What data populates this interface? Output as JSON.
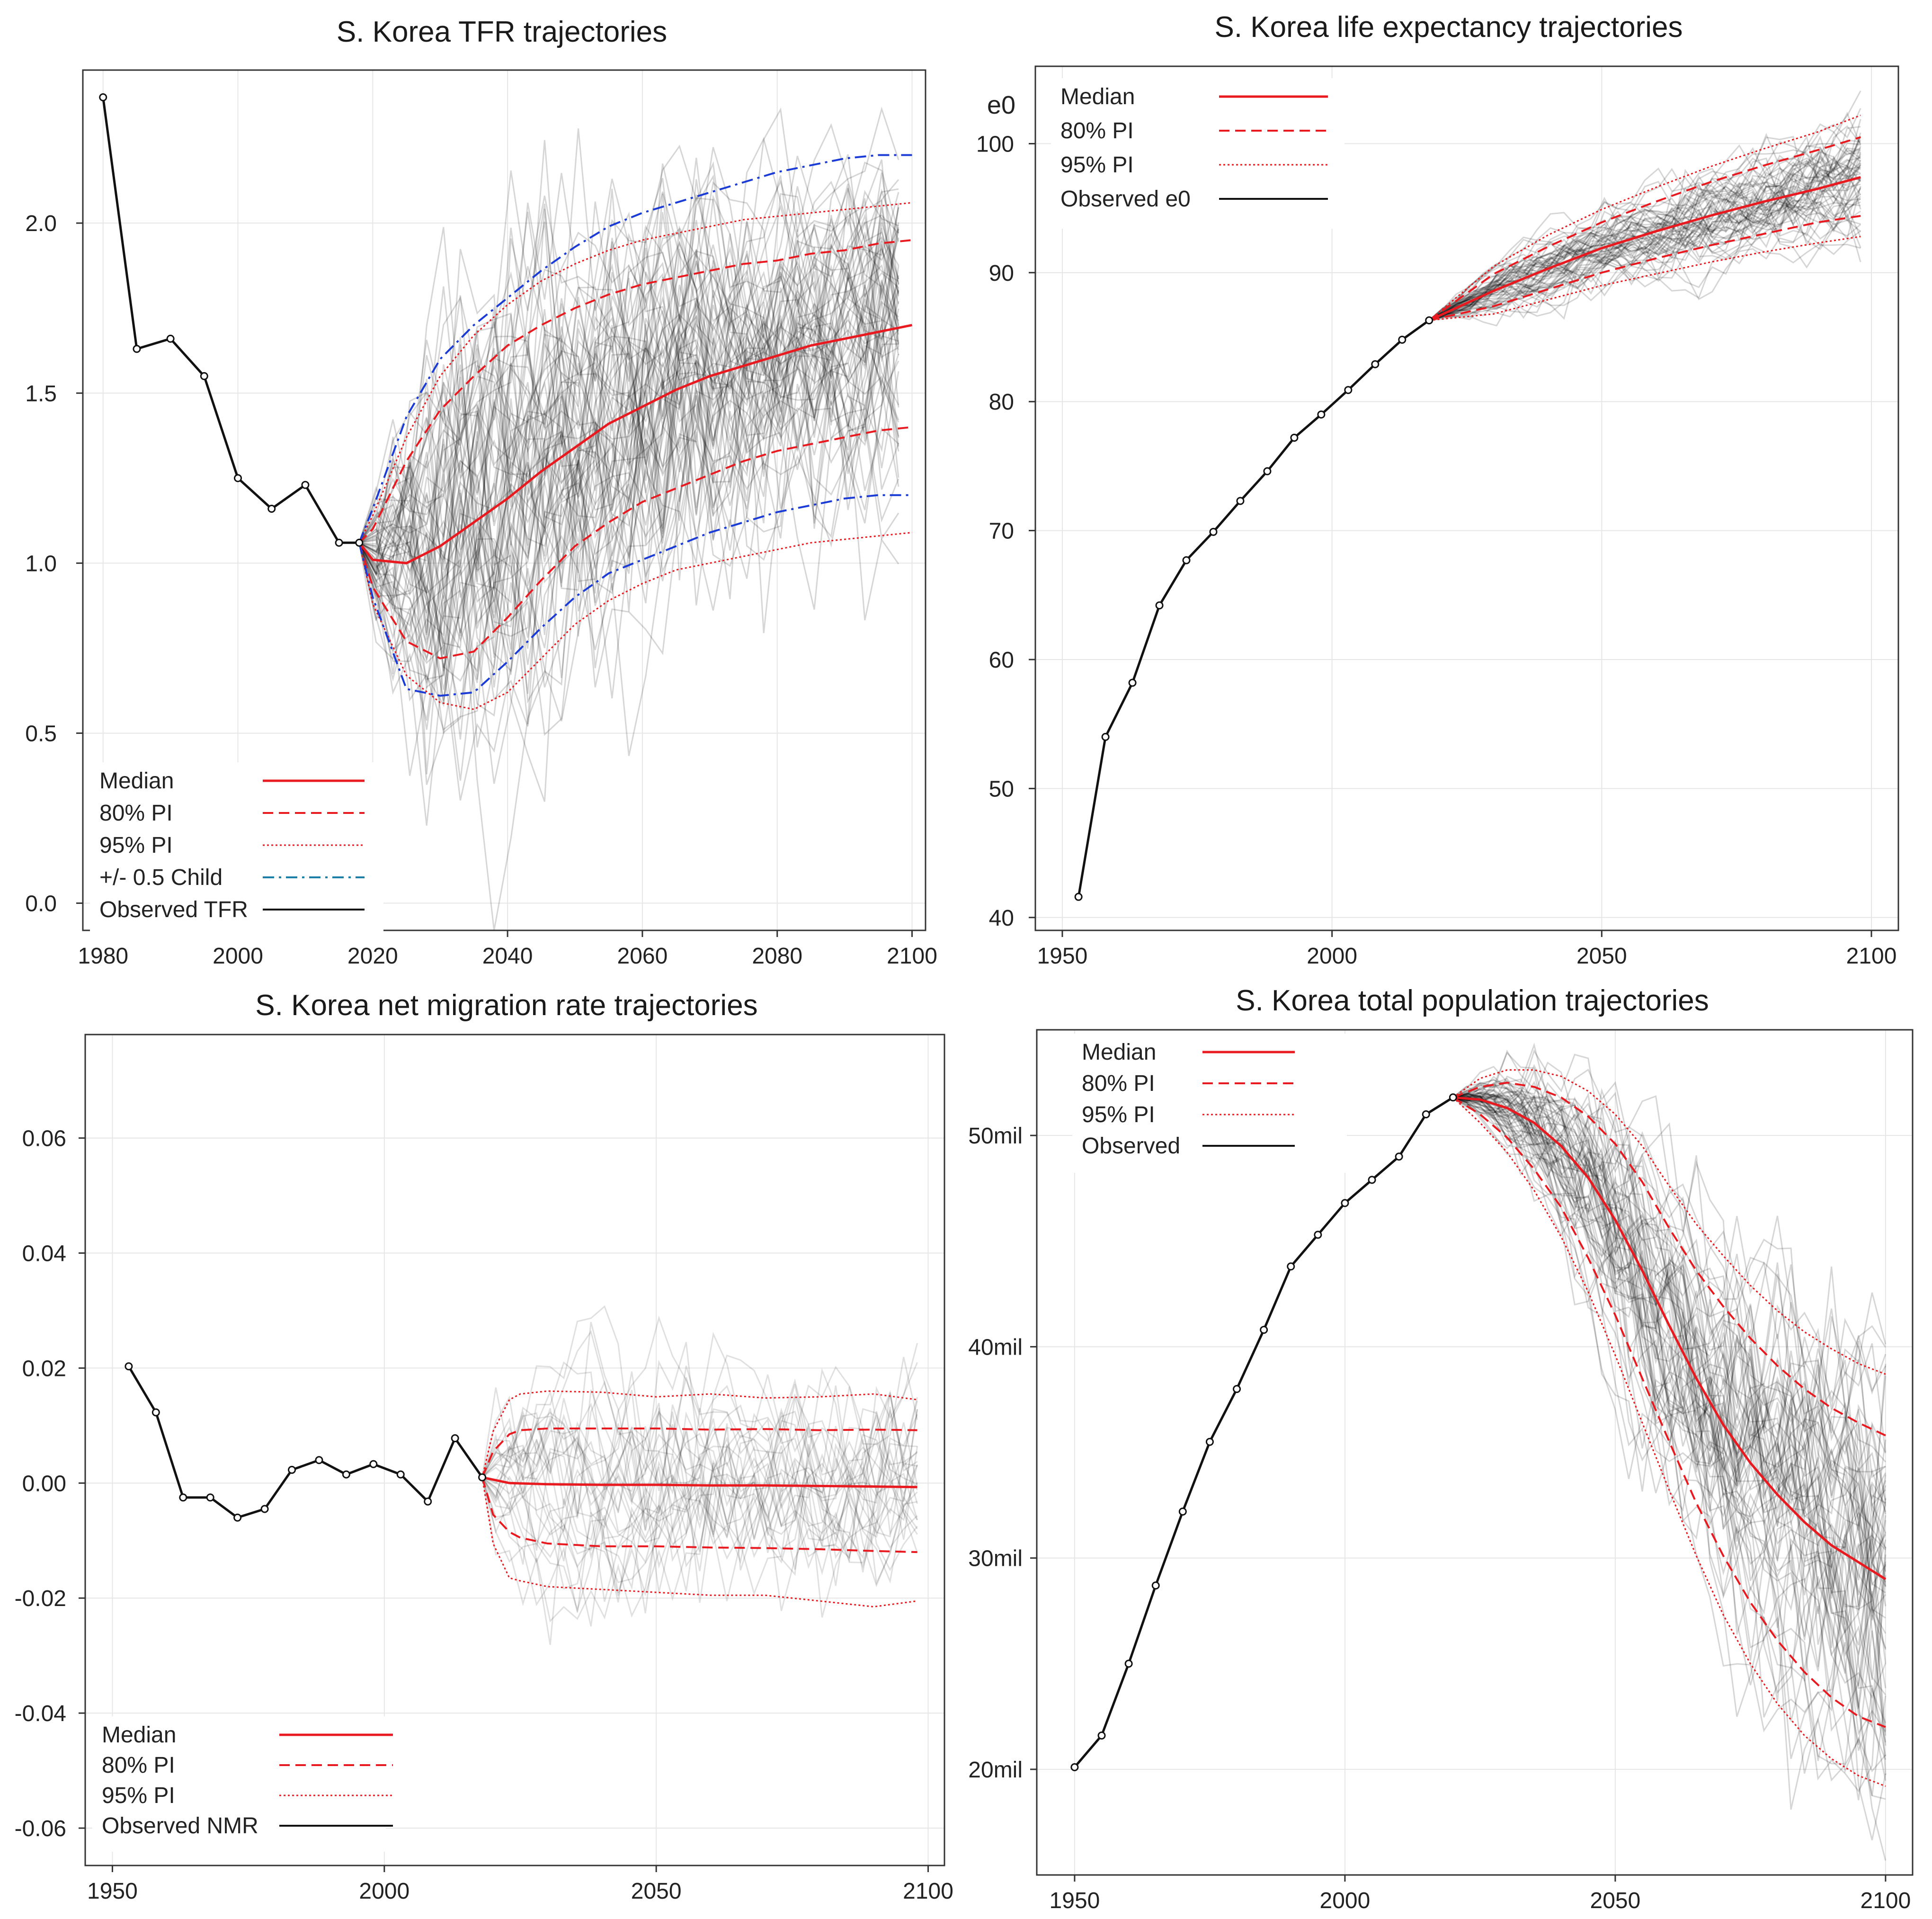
{
  "chart_data": [
    {
      "id": "tfr",
      "type": "line",
      "title": "S. Korea TFR trajectories",
      "xlabel": "",
      "ylabel": "",
      "xlim": [
        1977,
        2102
      ],
      "ylim": [
        -0.08,
        2.45
      ],
      "xticks": [
        1980,
        2000,
        2020,
        2040,
        2060,
        2080,
        2100
      ],
      "yticks": [
        0.0,
        0.5,
        1.0,
        1.5,
        2.0
      ],
      "ytick_labels": [
        "0.0",
        "0.5",
        "1.0",
        "1.5",
        "2.0"
      ],
      "legend_position": "bottom-left",
      "legend": [
        "Median",
        "80% PI",
        "95% PI",
        "+/- 0.5 Child",
        "Observed TFR"
      ],
      "observed": {
        "x": [
          1980,
          1985,
          1990,
          1995,
          2000,
          2005,
          2010,
          2015,
          2018
        ],
        "y": [
          2.37,
          1.63,
          1.66,
          1.55,
          1.25,
          1.16,
          1.23,
          1.06,
          1.06
        ]
      },
      "median": {
        "x": [
          2018,
          2020,
          2025,
          2030,
          2035,
          2040,
          2045,
          2050,
          2055,
          2060,
          2065,
          2070,
          2075,
          2080,
          2085,
          2090,
          2095,
          2100
        ],
        "y": [
          1.06,
          1.01,
          1.0,
          1.05,
          1.12,
          1.19,
          1.27,
          1.34,
          1.41,
          1.46,
          1.51,
          1.55,
          1.58,
          1.61,
          1.64,
          1.66,
          1.68,
          1.7
        ]
      },
      "pi80_upper": {
        "x": [
          2018,
          2020,
          2025,
          2030,
          2035,
          2040,
          2045,
          2050,
          2055,
          2060,
          2065,
          2070,
          2075,
          2080,
          2085,
          2090,
          2095,
          2100
        ],
        "y": [
          1.06,
          1.1,
          1.3,
          1.45,
          1.55,
          1.64,
          1.7,
          1.75,
          1.79,
          1.82,
          1.84,
          1.86,
          1.88,
          1.89,
          1.91,
          1.92,
          1.94,
          1.95
        ]
      },
      "pi80_lower": {
        "x": [
          2018,
          2020,
          2025,
          2030,
          2035,
          2040,
          2045,
          2050,
          2055,
          2060,
          2065,
          2070,
          2075,
          2080,
          2085,
          2090,
          2095,
          2100
        ],
        "y": [
          1.06,
          0.93,
          0.77,
          0.72,
          0.74,
          0.84,
          0.95,
          1.05,
          1.12,
          1.18,
          1.22,
          1.26,
          1.3,
          1.33,
          1.35,
          1.37,
          1.39,
          1.4
        ]
      },
      "pi95_upper": {
        "x": [
          2018,
          2020,
          2025,
          2030,
          2035,
          2040,
          2045,
          2050,
          2055,
          2060,
          2065,
          2070,
          2075,
          2080,
          2085,
          2090,
          2095,
          2100
        ],
        "y": [
          1.06,
          1.14,
          1.37,
          1.55,
          1.67,
          1.76,
          1.83,
          1.88,
          1.92,
          1.95,
          1.97,
          1.99,
          2.01,
          2.02,
          2.03,
          2.04,
          2.05,
          2.06
        ]
      },
      "pi95_lower": {
        "x": [
          2018,
          2020,
          2025,
          2030,
          2035,
          2040,
          2045,
          2050,
          2055,
          2060,
          2065,
          2070,
          2075,
          2080,
          2085,
          2090,
          2095,
          2100
        ],
        "y": [
          1.06,
          0.88,
          0.67,
          0.59,
          0.57,
          0.62,
          0.72,
          0.82,
          0.89,
          0.94,
          0.98,
          1.0,
          1.02,
          1.04,
          1.06,
          1.07,
          1.08,
          1.09
        ]
      },
      "half_child_upper": {
        "x": [
          2018,
          2020,
          2025,
          2030,
          2035,
          2040,
          2045,
          2050,
          2055,
          2060,
          2065,
          2070,
          2075,
          2080,
          2085,
          2090,
          2095,
          2100
        ],
        "y": [
          1.06,
          1.16,
          1.43,
          1.6,
          1.7,
          1.78,
          1.86,
          1.93,
          1.99,
          2.03,
          2.06,
          2.09,
          2.12,
          2.15,
          2.17,
          2.19,
          2.2,
          2.2
        ]
      },
      "half_child_lower": {
        "x": [
          2018,
          2020,
          2025,
          2030,
          2035,
          2040,
          2045,
          2050,
          2055,
          2060,
          2065,
          2070,
          2075,
          2080,
          2085,
          2090,
          2095,
          2100
        ],
        "y": [
          1.06,
          0.9,
          0.63,
          0.61,
          0.62,
          0.71,
          0.81,
          0.9,
          0.97,
          1.01,
          1.05,
          1.09,
          1.12,
          1.15,
          1.17,
          1.19,
          1.2,
          1.2
        ]
      },
      "trajectories": {
        "count": 70,
        "start_x": 2018,
        "end_x": 2100,
        "step": 2.5
      }
    },
    {
      "id": "e0",
      "type": "line",
      "title": "S. Korea life expectancy trajectories",
      "xlabel": "",
      "ylabel": "",
      "xlim": [
        1945,
        2105
      ],
      "ylim": [
        39,
        106
      ],
      "xticks": [
        1950,
        2000,
        2050,
        2100
      ],
      "yticks": [
        40,
        50,
        60,
        70,
        80,
        90,
        100
      ],
      "ytick_labels": [
        "40",
        "50",
        "60",
        "70",
        "80",
        "90",
        "100"
      ],
      "y_axis_label": "e0",
      "legend_position": "top-left",
      "legend": [
        "Median",
        "80% PI",
        "95% PI",
        "Observed e0"
      ],
      "observed": {
        "x": [
          1953,
          1958,
          1963,
          1968,
          1973,
          1978,
          1983,
          1988,
          1993,
          1998,
          2003,
          2008,
          2013,
          2018
        ],
        "y": [
          41.6,
          54.0,
          58.2,
          64.2,
          67.7,
          69.9,
          72.3,
          74.6,
          77.2,
          79.0,
          80.9,
          82.9,
          84.8,
          86.3
        ]
      },
      "median": {
        "x": [
          2018,
          2030,
          2040,
          2050,
          2060,
          2070,
          2080,
          2090,
          2098
        ],
        "y": [
          86.3,
          88.6,
          90.3,
          91.9,
          93.2,
          94.4,
          95.5,
          96.5,
          97.4
        ]
      },
      "pi80_upper": {
        "x": [
          2018,
          2030,
          2040,
          2050,
          2060,
          2070,
          2080,
          2090,
          2098
        ],
        "y": [
          86.3,
          89.9,
          92.0,
          93.9,
          95.5,
          97.0,
          98.3,
          99.5,
          100.5
        ]
      },
      "pi80_lower": {
        "x": [
          2018,
          2030,
          2040,
          2050,
          2060,
          2070,
          2080,
          2090,
          2098
        ],
        "y": [
          86.3,
          87.4,
          88.7,
          90.0,
          91.1,
          92.1,
          93.0,
          93.9,
          94.4
        ]
      },
      "pi95_upper": {
        "x": [
          2018,
          2030,
          2040,
          2050,
          2060,
          2070,
          2080,
          2090,
          2098
        ],
        "y": [
          86.3,
          90.5,
          92.9,
          94.9,
          96.6,
          98.2,
          99.6,
          100.9,
          102.2
        ]
      },
      "pi95_lower": {
        "x": [
          2018,
          2030,
          2040,
          2050,
          2060,
          2070,
          2080,
          2090,
          2098
        ],
        "y": [
          86.3,
          86.8,
          87.9,
          89.0,
          89.9,
          90.8,
          91.6,
          92.3,
          92.8
        ]
      },
      "trajectories": {
        "count": 60,
        "start_x": 2018,
        "end_x": 2098,
        "step": 2.5
      }
    },
    {
      "id": "nmr",
      "type": "line",
      "title": "S. Korea net migration rate trajectories",
      "xlabel": "",
      "ylabel": "",
      "xlim": [
        1945,
        2103
      ],
      "ylim": [
        -0.0665,
        0.078
      ],
      "xticks": [
        1950,
        2000,
        2050,
        2100
      ],
      "yticks": [
        -0.06,
        -0.04,
        -0.02,
        0.0,
        0.02,
        0.04,
        0.06
      ],
      "ytick_labels": [
        "-0.06",
        "-0.04",
        "-0.02",
        "0.00",
        "0.02",
        "0.04",
        "0.06"
      ],
      "legend_position": "bottom-left",
      "legend": [
        "Median",
        "80% PI",
        "95% PI",
        "Observed NMR"
      ],
      "observed": {
        "x": [
          1953,
          1958,
          1963,
          1968,
          1973,
          1978,
          1983,
          1988,
          1993,
          1998,
          2003,
          2008,
          2013,
          2018
        ],
        "y": [
          0.0203,
          0.0123,
          -0.0025,
          -0.0025,
          -0.006,
          -0.0045,
          0.0023,
          0.004,
          0.0015,
          0.0033,
          0.0015,
          -0.0032,
          0.0078,
          0.001
        ]
      },
      "median": {
        "x": [
          2018,
          2023,
          2030,
          2040,
          2050,
          2060,
          2070,
          2080,
          2090,
          2098
        ],
        "y": [
          0.001,
          0.0,
          -0.0002,
          -0.0003,
          -0.0003,
          -0.0004,
          -0.0004,
          -0.0005,
          -0.0006,
          -0.0007
        ]
      },
      "pi80_upper": {
        "x": [
          2018,
          2020,
          2023,
          2025,
          2030,
          2040,
          2050,
          2060,
          2070,
          2080,
          2090,
          2098
        ],
        "y": [
          0.001,
          0.0055,
          0.0085,
          0.0092,
          0.0095,
          0.0095,
          0.0095,
          0.0093,
          0.0094,
          0.0092,
          0.0093,
          0.0092
        ]
      },
      "pi80_lower": {
        "x": [
          2018,
          2020,
          2023,
          2025,
          2030,
          2040,
          2050,
          2060,
          2070,
          2080,
          2090,
          2098
        ],
        "y": [
          0.001,
          -0.0055,
          -0.0085,
          -0.0095,
          -0.0105,
          -0.011,
          -0.011,
          -0.0112,
          -0.0113,
          -0.0115,
          -0.0118,
          -0.012
        ]
      },
      "pi95_upper": {
        "x": [
          2018,
          2020,
          2023,
          2025,
          2030,
          2040,
          2050,
          2060,
          2070,
          2080,
          2090,
          2098
        ],
        "y": [
          0.001,
          0.009,
          0.0145,
          0.0155,
          0.016,
          0.0158,
          0.015,
          0.0155,
          0.0148,
          0.015,
          0.0155,
          0.0145
        ]
      },
      "pi95_lower": {
        "x": [
          2018,
          2020,
          2023,
          2025,
          2030,
          2040,
          2050,
          2060,
          2070,
          2080,
          2090,
          2098
        ],
        "y": [
          0.001,
          -0.0105,
          -0.0165,
          -0.017,
          -0.018,
          -0.0185,
          -0.019,
          -0.0195,
          -0.0195,
          -0.0205,
          -0.0215,
          -0.0205
        ]
      },
      "trajectories": {
        "count": 30,
        "start_x": 2018,
        "end_x": 2098,
        "step": 2.5
      }
    },
    {
      "id": "pop",
      "type": "line",
      "title": "S. Korea total population trajectories",
      "xlabel": "",
      "ylabel": "",
      "xlim": [
        1943,
        2105
      ],
      "ylim": [
        15,
        55
      ],
      "xticks": [
        1950,
        2000,
        2050,
        2100
      ],
      "yticks": [
        20,
        30,
        40,
        50
      ],
      "ytick_labels": [
        "20mil",
        "30mil",
        "40mil",
        "50mil"
      ],
      "legend_position": "top-left",
      "legend": [
        "Median",
        "80% PI",
        "95% PI",
        "Observed"
      ],
      "observed": {
        "x": [
          1950,
          1955,
          1960,
          1965,
          1970,
          1975,
          1980,
          1985,
          1990,
          1995,
          2000,
          2005,
          2010,
          2015,
          2020
        ],
        "y": [
          20.1,
          21.6,
          25.0,
          28.7,
          32.2,
          35.5,
          38.0,
          40.8,
          43.8,
          45.3,
          46.8,
          47.9,
          49.0,
          51.0,
          51.8
        ]
      },
      "median": {
        "x": [
          2020,
          2025,
          2030,
          2035,
          2040,
          2045,
          2050,
          2055,
          2060,
          2065,
          2070,
          2075,
          2080,
          2085,
          2090,
          2095,
          2100
        ],
        "y": [
          51.8,
          51.7,
          51.3,
          50.6,
          49.5,
          48.0,
          46.0,
          43.6,
          41.0,
          38.5,
          36.3,
          34.5,
          33.0,
          31.7,
          30.6,
          29.8,
          29.0
        ]
      },
      "pi80_upper": {
        "x": [
          2020,
          2025,
          2030,
          2035,
          2040,
          2045,
          2050,
          2055,
          2060,
          2065,
          2070,
          2075,
          2080,
          2085,
          2090,
          2095,
          2100
        ],
        "y": [
          51.8,
          52.3,
          52.5,
          52.3,
          51.8,
          50.9,
          49.6,
          47.8,
          45.6,
          43.6,
          41.9,
          40.4,
          39.1,
          38.0,
          37.1,
          36.4,
          35.8
        ]
      },
      "pi80_lower": {
        "x": [
          2020,
          2025,
          2030,
          2035,
          2040,
          2045,
          2050,
          2055,
          2060,
          2065,
          2070,
          2075,
          2080,
          2085,
          2090,
          2095,
          2100
        ],
        "y": [
          51.8,
          51.0,
          49.9,
          48.4,
          46.6,
          44.2,
          41.5,
          38.5,
          35.5,
          32.6,
          30.1,
          27.9,
          26.1,
          24.6,
          23.4,
          22.5,
          22.0
        ]
      },
      "pi95_upper": {
        "x": [
          2020,
          2025,
          2030,
          2035,
          2040,
          2045,
          2050,
          2055,
          2060,
          2065,
          2070,
          2075,
          2080,
          2085,
          2090,
          2095,
          2100
        ],
        "y": [
          51.8,
          52.7,
          53.1,
          53.1,
          52.8,
          52.1,
          51.0,
          49.5,
          47.6,
          45.8,
          44.3,
          42.9,
          41.7,
          40.7,
          39.9,
          39.2,
          38.7
        ]
      },
      "pi95_lower": {
        "x": [
          2020,
          2025,
          2030,
          2035,
          2040,
          2045,
          2050,
          2055,
          2060,
          2065,
          2070,
          2075,
          2080,
          2085,
          2090,
          2095,
          2100
        ],
        "y": [
          51.8,
          50.6,
          49.2,
          47.4,
          45.2,
          42.6,
          39.6,
          36.4,
          33.2,
          30.1,
          27.3,
          25.0,
          23.1,
          21.6,
          20.5,
          19.7,
          19.2
        ]
      },
      "trajectories": {
        "count": 70,
        "start_x": 2020,
        "end_x": 2100,
        "step": 2.5
      }
    }
  ],
  "colors": {
    "median": "#e8191f",
    "pi": "#e8191f",
    "half_child": "#1a3bd6",
    "half_child_legend": "#1b7fa8",
    "observed": "#111111",
    "trajectory": "#000000",
    "grid": "#e6e6e6",
    "frame": "#333333"
  }
}
